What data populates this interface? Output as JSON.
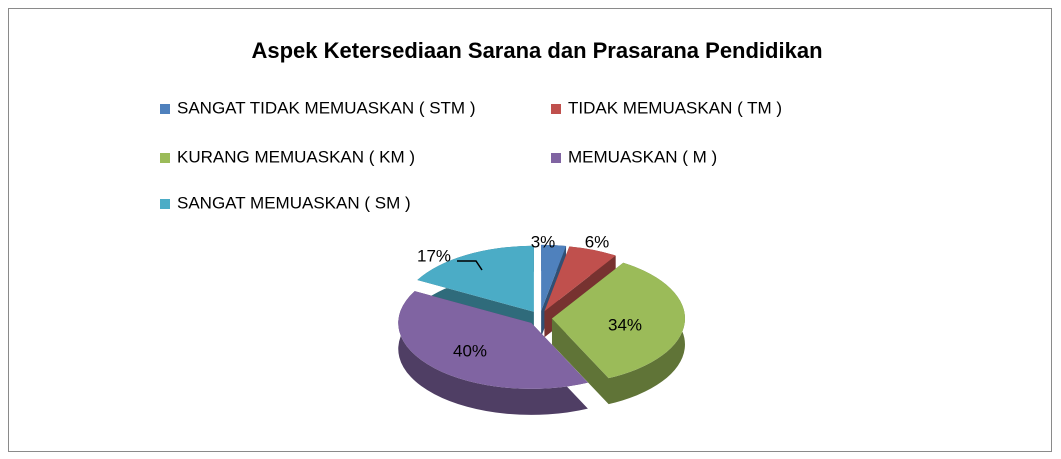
{
  "chart_data": {
    "type": "pie",
    "title": "Aspek Ketersediaan Sarana dan Prasarana Pendidikan",
    "categories": [
      "SANGAT TIDAK MEMUASKAN ( STM )",
      "TIDAK MEMUASKAN ( TM )",
      "KURANG MEMUASKAN ( KM )",
      "MEMUASKAN ( M )",
      "SANGAT MEMUASKAN ( SM )"
    ],
    "values": [
      3,
      6,
      34,
      40,
      17
    ],
    "value_labels": [
      "3%",
      "6%",
      "34%",
      "40%",
      "17%"
    ],
    "colors": [
      "#4f81bd",
      "#c0504d",
      "#9bbb59",
      "#8064a2",
      "#4bacc6"
    ],
    "legend": "top"
  }
}
